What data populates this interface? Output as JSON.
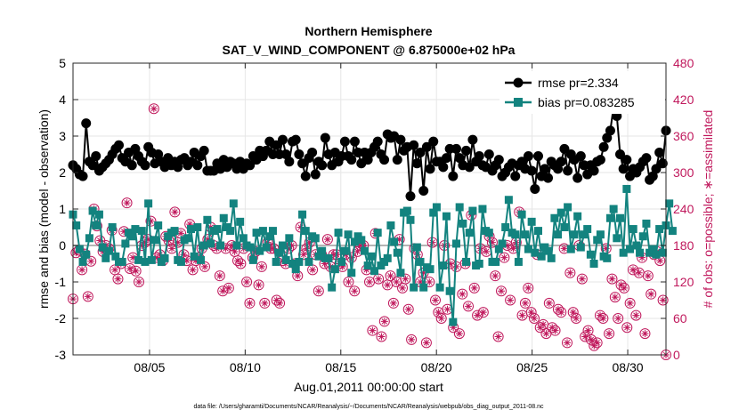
{
  "chart_data": {
    "type": "line",
    "title": "Northern Hemisphere",
    "subtitle": "SAT_V_WIND_COMPONENT @ 6.875000e+02 hPa",
    "xlabel": "Aug.01,2011 00:00:00 start",
    "ylabel": "rmse and bias (model - observation)",
    "ylabel_right": "# of obs: o=possible; ∗=assimilated",
    "ylim": [
      -3,
      5
    ],
    "ylim_right": [
      0,
      480
    ],
    "xlim": [
      1.0,
      32.0
    ],
    "yticks": [
      "-3",
      "-2",
      "-1",
      "0",
      "1",
      "2",
      "3",
      "4",
      "5"
    ],
    "yticks_right": [
      "0",
      "60",
      "120",
      "180",
      "240",
      "300",
      "360",
      "420",
      "480"
    ],
    "x_ticks": [
      {
        "x": 5,
        "label": "08/05"
      },
      {
        "x": 10,
        "label": "08/10"
      },
      {
        "x": 15,
        "label": "08/15"
      },
      {
        "x": 20,
        "label": "08/20"
      },
      {
        "x": 25,
        "label": "08/25"
      },
      {
        "x": 30,
        "label": "08/30"
      }
    ],
    "footnote": "data file: /Users/gharamti/Documents/NCAR/Reanalysis/~/Documents/NCAR/Reanalysis/webpub/obs_diag_output_2011-08.nc",
    "colors": {
      "rmse": "#000000",
      "bias": "#13837f",
      "obs": "#c0185c",
      "zero": "#b4b4b4"
    },
    "series": [
      {
        "name": "rmse",
        "label": "rmse pr=2.334",
        "values": [
          2.2,
          2.1,
          1.95,
          1.9,
          3.35,
          2.3,
          2.2,
          2.45,
          2.05,
          2.15,
          2.25,
          2.35,
          2.5,
          2.65,
          2.75,
          2.4,
          2.3,
          2.55,
          2.2,
          2.65,
          2.45,
          2.3,
          2.2,
          2.7,
          2.55,
          2.25,
          2.5,
          2.3,
          2.15,
          2.4,
          2.2,
          2.3,
          2.15,
          2.35,
          2.4,
          2.2,
          2.3,
          2.55,
          2.2,
          2.45,
          2.6,
          2.05,
          2.05,
          2.05,
          2.25,
          2.1,
          2.35,
          2.15,
          2.3,
          2.25,
          2.1,
          2.3,
          2.1,
          2.25,
          2.2,
          2.45,
          2.35,
          2.6,
          2.45,
          2.6,
          2.85,
          2.5,
          2.75,
          2.5,
          2.9,
          2.5,
          2.3,
          2.85,
          2.9,
          2.5,
          2.25,
          1.9,
          2.4,
          2.55,
          1.95,
          2.3,
          2.2,
          2.95,
          2.5,
          2.2,
          2.55,
          2.3,
          2.45,
          2.85,
          2.45,
          2.35,
          2.85,
          2.55,
          2.25,
          2.55,
          2.35,
          2.55,
          2.7,
          2.85,
          2.5,
          2.35,
          3.05,
          2.95,
          3.0,
          2.35,
          2.9,
          2.6,
          2.7,
          1.35,
          2.75,
          2.25,
          2.55,
          1.5,
          2.7,
          2.1,
          2.85,
          2.3,
          2.3,
          2.15,
          2.4,
          2.65,
          1.9,
          2.65,
          2.4,
          2.2,
          2.6,
          2.15,
          2.9,
          2.3,
          2.45,
          2.2,
          2.15,
          2.5,
          2.05,
          2.2,
          2.35,
          1.9,
          2.0,
          2.15,
          2.25,
          1.9,
          2.2,
          2.3,
          2.1,
          2.45,
          2.05,
          1.55,
          2.45,
          1.9,
          2.1,
          1.85,
          2.3,
          2.2,
          2.1,
          2.3,
          2.65,
          2.05,
          2.5,
          2.35,
          1.85,
          2.45,
          2.2,
          1.95,
          2.2,
          2.05,
          2.3,
          2.35,
          2.7,
          2.95,
          3.15,
          3.8,
          3.55,
          2.5,
          2.1,
          2.35,
          1.9,
          2.1,
          2.0,
          2.15,
          2.3,
          2.4,
          1.8,
          1.9,
          2.1,
          2.55,
          2.25,
          3.15
        ]
      },
      {
        "name": "bias",
        "label": "bias pr=0.083285",
        "values": [
          0.85,
          0.55,
          -0.1,
          -0.45,
          -0.25,
          0.2,
          0.95,
          0.55,
          0.85,
          -0.05,
          -0.35,
          -0.15,
          0.5,
          -0.3,
          -0.45,
          -0.45,
          0.05,
          0.35,
          0.25,
          0.45,
          -0.4,
          0.4,
          -0.45,
          1.15,
          -0.4,
          0.15,
          0.55,
          -0.45,
          -0.35,
          0.25,
          0.35,
          0.4,
          -0.4,
          -0.45,
          0.15,
          0.2,
          0.45,
          -0.3,
          0.5,
          -0.4,
          0.0,
          0.7,
          0.05,
          0.4,
          0.45,
          0.0,
          0.75,
          0.5,
          0.4,
          1.15,
          0.0,
          0.65,
          0.2,
          0.0,
          -0.05,
          -0.4,
          0.35,
          -0.15,
          0.4,
          -0.05,
          0.25,
          0.4,
          -0.45,
          -0.2,
          0.0,
          -0.4,
          0.2,
          -0.5,
          -0.65,
          -0.45,
          0.85,
          0.4,
          -0.45,
          0.25,
          0.2,
          -0.3,
          -0.15,
          -0.35,
          -0.35,
          -1.15,
          -0.65,
          0.35,
          -0.45,
          -0.15,
          0.3,
          -0.75,
          0.1,
          0.25,
          0.15,
          -0.15,
          -0.55,
          -0.3,
          -0.7,
          0.35,
          -0.55,
          -0.45,
          -0.35,
          0.55,
          0.1,
          -0.2,
          -0.75,
          0.9,
          0.95,
          0.7,
          -1.15,
          -0.05,
          -0.45,
          -1.15,
          -0.6,
          -0.65,
          0.9,
          1.05,
          -1.15,
          -0.55,
          0.8,
          -1.25,
          -2.1,
          0.05,
          1.05,
          0.6,
          -0.45,
          0.35,
          0.95,
          -0.55,
          -0.5,
          1.0,
          0.4,
          0.35,
          -0.45,
          -0.45,
          -0.1,
          0.05,
          0.5,
          1.25,
          0.35,
          0.3,
          -0.45,
          0.85,
          0.3,
          -0.1,
          0.65,
          -0.2,
          0.4,
          -0.3,
          -0.05,
          -0.15,
          -0.35,
          0.75,
          0.3,
          0.9,
          0.5,
          1.05,
          -0.1,
          0.3,
          0.8,
          -0.05,
          0.3,
          0.45,
          -0.25,
          -0.5,
          0.15,
          0.3,
          -0.3,
          -0.35,
          0.75,
          1.0,
          0.2,
          0.75,
          -0.2,
          1.55,
          -0.1,
          0.45,
          0.0,
          -0.2,
          0.25,
          0.6,
          -0.2,
          -0.1,
          -0.25,
          0.45,
          -0.2,
          0.55,
          1.15,
          0.4
        ]
      },
      {
        "name": "obs_possible",
        "label": "o=possible",
        "axis": "right",
        "values": [
          92,
          168,
          172,
          140,
          166,
          96,
          154,
          240,
          212,
          188,
          170,
          180,
          175,
          205,
          140,
          125,
          150,
          203,
          250,
          142,
          160,
          138,
          120,
          180,
          185,
          190,
          220,
          405,
          160,
          165,
          155,
          195,
          188,
          175,
          235,
          185,
          200,
          165,
          155,
          215,
          140,
          155,
          160,
          175,
          145,
          190,
          210,
          180,
          175,
          130,
          105,
          175,
          110,
          180,
          170,
          155,
          150,
          175,
          120,
          85,
          160,
          170,
          115,
          145,
          85,
          185,
          175,
          175,
          90,
          85,
          155,
          150,
          175,
          180,
          150,
          130,
          210,
          165,
          175,
          185,
          140,
          165,
          105,
          165,
          150,
          190,
          145,
          165,
          165,
          150,
          145,
          165,
          120,
          160,
          105,
          170,
          180,
          180,
          140,
          120,
          40,
          200,
          125,
          30,
          55,
          115,
          130,
          85,
          120,
          190,
          110,
          125,
          75,
          25,
          175,
          165,
          120,
          135,
          20,
          120,
          185,
          90,
          70,
          60,
          180,
          75,
          150,
          45,
          145,
          35,
          100,
          150,
          80,
          230,
          110,
          65,
          175,
          70,
          170,
          195,
          185,
          130,
          30,
          105,
          160,
          180,
          90,
          175,
          185,
          235,
          65,
          85,
          110,
          70,
          60,
          165,
          45,
          50,
          35,
          85,
          45,
          40,
          75,
          70,
          175,
          20,
          135,
          70,
          60,
          180,
          125,
          30,
          40,
          25,
          15,
          20,
          65,
          60,
          175,
          35,
          125,
          95,
          60,
          115,
          110,
          45,
          85,
          140,
          65,
          135,
          160,
          35,
          130,
          100,
          165,
          170,
          155,
          90,
          0
        ]
      },
      {
        "name": "obs_assimilated",
        "label": "∗=assimilated",
        "axis": "right",
        "values": [
          92,
          168,
          172,
          140,
          166,
          96,
          154,
          240,
          212,
          188,
          170,
          180,
          175,
          205,
          140,
          125,
          150,
          203,
          250,
          142,
          160,
          138,
          120,
          180,
          185,
          190,
          220,
          405,
          160,
          165,
          155,
          195,
          188,
          175,
          235,
          185,
          200,
          165,
          155,
          215,
          140,
          155,
          160,
          175,
          145,
          190,
          210,
          180,
          175,
          130,
          105,
          175,
          110,
          180,
          170,
          155,
          150,
          175,
          120,
          85,
          160,
          170,
          115,
          145,
          85,
          185,
          175,
          175,
          90,
          85,
          155,
          150,
          175,
          180,
          150,
          130,
          210,
          165,
          175,
          185,
          140,
          165,
          105,
          165,
          150,
          190,
          145,
          165,
          165,
          150,
          145,
          165,
          120,
          160,
          105,
          170,
          180,
          180,
          140,
          120,
          40,
          200,
          125,
          30,
          55,
          115,
          130,
          85,
          120,
          190,
          110,
          125,
          75,
          25,
          175,
          165,
          120,
          135,
          20,
          120,
          185,
          90,
          70,
          60,
          180,
          75,
          150,
          45,
          145,
          35,
          100,
          150,
          80,
          230,
          110,
          65,
          175,
          70,
          170,
          195,
          185,
          130,
          30,
          105,
          160,
          180,
          90,
          175,
          185,
          235,
          65,
          85,
          110,
          70,
          60,
          165,
          45,
          50,
          35,
          85,
          45,
          40,
          75,
          70,
          175,
          20,
          135,
          70,
          60,
          180,
          125,
          30,
          40,
          25,
          15,
          20,
          65,
          60,
          175,
          35,
          125,
          95,
          60,
          115,
          110,
          45,
          85,
          140,
          65,
          135,
          160,
          35,
          130,
          100,
          165,
          170,
          155,
          90,
          0
        ]
      }
    ]
  }
}
